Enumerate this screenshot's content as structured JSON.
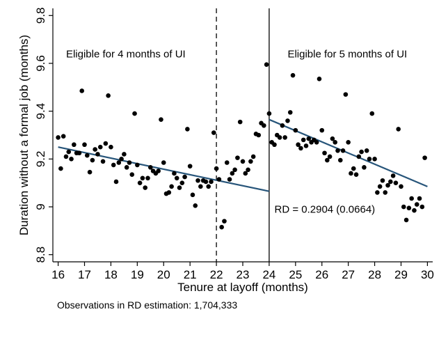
{
  "chart_data": {
    "type": "scatter",
    "xlabel": "Tenure at layoff (months)",
    "ylabel": "Duration without a formal job (months)",
    "xlim": [
      15.8,
      30.2
    ],
    "ylim": [
      8.77,
      9.83
    ],
    "xticks": [
      16,
      17,
      18,
      19,
      20,
      21,
      22,
      23,
      24,
      25,
      26,
      27,
      28,
      29,
      30
    ],
    "yticks": [
      8.8,
      9,
      9.2,
      9.4,
      9.6,
      9.8
    ],
    "ytick_labels": [
      "8.8",
      "9",
      "9.2",
      "9.4",
      "9.6",
      "9.8"
    ],
    "grid": false,
    "vlines": [
      {
        "x": 22,
        "style": "dashed"
      },
      {
        "x": 24,
        "style": "solid"
      }
    ],
    "annotations": [
      {
        "text": "Eligible for 4 months of UI",
        "x": 16.3,
        "y": 9.625
      },
      {
        "text": "Eligible for 5 months of UI",
        "x": 24.7,
        "y": 9.625
      },
      {
        "text": "RD = 0.2904 (0.0664)",
        "x": 24.2,
        "y": 8.975
      }
    ],
    "footnote": "Observations in RD estimation: 1,704,333",
    "fit_lines": [
      {
        "x": [
          16,
          24
        ],
        "y": [
          9.25,
          9.065
        ]
      },
      {
        "x": [
          24,
          30
        ],
        "y": [
          9.365,
          9.085
        ]
      }
    ],
    "points": [
      [
        16.0,
        9.29
      ],
      [
        16.1,
        9.16
      ],
      [
        16.2,
        9.295
      ],
      [
        16.3,
        9.21
      ],
      [
        16.4,
        9.23
      ],
      [
        16.5,
        9.2
      ],
      [
        16.6,
        9.26
      ],
      [
        16.7,
        9.225
      ],
      [
        16.8,
        9.225
      ],
      [
        16.9,
        9.485
      ],
      [
        17.0,
        9.26
      ],
      [
        17.1,
        9.215
      ],
      [
        17.2,
        9.145
      ],
      [
        17.3,
        9.195
      ],
      [
        17.4,
        9.24
      ],
      [
        17.5,
        9.22
      ],
      [
        17.6,
        9.25
      ],
      [
        17.7,
        9.19
      ],
      [
        17.8,
        9.265
      ],
      [
        17.9,
        9.465
      ],
      [
        18.0,
        9.25
      ],
      [
        18.1,
        9.175
      ],
      [
        18.2,
        9.105
      ],
      [
        18.3,
        9.185
      ],
      [
        18.4,
        9.2
      ],
      [
        18.5,
        9.22
      ],
      [
        18.6,
        9.165
      ],
      [
        18.7,
        9.185
      ],
      [
        18.8,
        9.135
      ],
      [
        18.9,
        9.39
      ],
      [
        19.0,
        9.175
      ],
      [
        19.1,
        9.1
      ],
      [
        19.2,
        9.12
      ],
      [
        19.3,
        9.08
      ],
      [
        19.4,
        9.12
      ],
      [
        19.5,
        9.165
      ],
      [
        19.6,
        9.15
      ],
      [
        19.7,
        9.14
      ],
      [
        19.8,
        9.15
      ],
      [
        19.9,
        9.365
      ],
      [
        20.0,
        9.185
      ],
      [
        20.1,
        9.055
      ],
      [
        20.2,
        9.06
      ],
      [
        20.3,
        9.085
      ],
      [
        20.4,
        9.14
      ],
      [
        20.5,
        9.12
      ],
      [
        20.6,
        9.08
      ],
      [
        20.7,
        9.1
      ],
      [
        20.8,
        9.125
      ],
      [
        20.9,
        9.325
      ],
      [
        21.0,
        9.17
      ],
      [
        21.1,
        9.05
      ],
      [
        21.2,
        9.005
      ],
      [
        21.3,
        9.11
      ],
      [
        21.4,
        9.085
      ],
      [
        21.5,
        9.11
      ],
      [
        21.6,
        9.105
      ],
      [
        21.7,
        9.085
      ],
      [
        21.8,
        9.105
      ],
      [
        21.9,
        9.31
      ],
      [
        22.0,
        9.16
      ],
      [
        22.1,
        9.115
      ],
      [
        22.2,
        8.915
      ],
      [
        22.3,
        8.94
      ],
      [
        22.4,
        9.185
      ],
      [
        22.5,
        9.115
      ],
      [
        22.6,
        9.14
      ],
      [
        22.7,
        9.155
      ],
      [
        22.8,
        9.205
      ],
      [
        22.9,
        9.355
      ],
      [
        23.0,
        9.19
      ],
      [
        23.1,
        9.14
      ],
      [
        23.2,
        9.155
      ],
      [
        23.3,
        9.19
      ],
      [
        23.4,
        9.21
      ],
      [
        23.5,
        9.305
      ],
      [
        23.6,
        9.3
      ],
      [
        23.7,
        9.35
      ],
      [
        23.8,
        9.34
      ],
      [
        23.9,
        9.595
      ],
      [
        24.0,
        9.39
      ],
      [
        24.1,
        9.27
      ],
      [
        24.2,
        9.26
      ],
      [
        24.3,
        9.3
      ],
      [
        24.4,
        9.29
      ],
      [
        24.5,
        9.34
      ],
      [
        24.6,
        9.29
      ],
      [
        24.7,
        9.36
      ],
      [
        24.8,
        9.395
      ],
      [
        24.9,
        9.55
      ],
      [
        25.0,
        9.32
      ],
      [
        25.1,
        9.26
      ],
      [
        25.2,
        9.245
      ],
      [
        25.3,
        9.28
      ],
      [
        25.4,
        9.255
      ],
      [
        25.5,
        9.285
      ],
      [
        25.6,
        9.27
      ],
      [
        25.7,
        9.28
      ],
      [
        25.8,
        9.27
      ],
      [
        25.9,
        9.535
      ],
      [
        26.0,
        9.32
      ],
      [
        26.1,
        9.225
      ],
      [
        26.2,
        9.195
      ],
      [
        26.3,
        9.21
      ],
      [
        26.4,
        9.285
      ],
      [
        26.5,
        9.27
      ],
      [
        26.6,
        9.235
      ],
      [
        26.7,
        9.195
      ],
      [
        26.8,
        9.235
      ],
      [
        26.9,
        9.47
      ],
      [
        27.0,
        9.27
      ],
      [
        27.1,
        9.14
      ],
      [
        27.2,
        9.16
      ],
      [
        27.3,
        9.135
      ],
      [
        27.4,
        9.21
      ],
      [
        27.5,
        9.23
      ],
      [
        27.6,
        9.165
      ],
      [
        27.7,
        9.235
      ],
      [
        27.8,
        9.2
      ],
      [
        27.9,
        9.39
      ],
      [
        28.0,
        9.2
      ],
      [
        28.1,
        9.06
      ],
      [
        28.2,
        9.085
      ],
      [
        28.3,
        9.11
      ],
      [
        28.4,
        9.06
      ],
      [
        28.5,
        9.09
      ],
      [
        28.6,
        9.105
      ],
      [
        28.7,
        9.13
      ],
      [
        28.8,
        9.1
      ],
      [
        28.9,
        9.325
      ],
      [
        29.0,
        9.085
      ],
      [
        29.1,
        9.0
      ],
      [
        29.2,
        8.945
      ],
      [
        29.3,
        8.995
      ],
      [
        29.4,
        9.035
      ],
      [
        29.5,
        8.985
      ],
      [
        29.6,
        9.01
      ],
      [
        29.7,
        9.035
      ],
      [
        29.8,
        9.0
      ],
      [
        29.9,
        9.205
      ]
    ]
  }
}
